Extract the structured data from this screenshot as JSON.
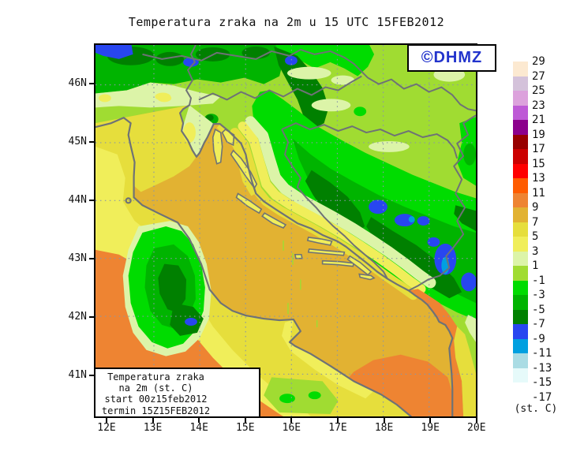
{
  "title": "Temperatura zraka na 2m u 15 UTC 15FEB2012",
  "logo": {
    "text": "©DHMZ",
    "color": "#2233CC"
  },
  "legend_box": {
    "lines": [
      "Temperatura zraka",
      "na 2m (st. C)",
      "start 00z15feb2012",
      "termin 15Z15FEB2012"
    ]
  },
  "axes": {
    "x_ticks": [
      "12E",
      "13E",
      "14E",
      "15E",
      "16E",
      "17E",
      "18E",
      "19E",
      "20E"
    ],
    "y_ticks": [
      "46N",
      "45N",
      "44N",
      "43N",
      "42N",
      "41N"
    ]
  },
  "colorbar": {
    "caption": "(st. C)",
    "boundary_labels": [
      "29",
      "27",
      "25",
      "23",
      "21",
      "19",
      "17",
      "15",
      "13",
      "11",
      "9",
      "7",
      "5",
      "3",
      "1",
      "-1",
      "-3",
      "-5",
      "-7",
      "-9",
      "-11",
      "-13",
      "-15",
      "-17"
    ],
    "box_colors": [
      "#FCE9D1",
      "#D4C2DA",
      "#DCA2DC",
      "#BE5AD6",
      "#8C008C",
      "#980000",
      "#CC0000",
      "#FF0000",
      "#FF5C00",
      "#EE8432",
      "#E2B232",
      "#E6DE3C",
      "#F0EE5A",
      "#DCF4A8",
      "#A0DC32",
      "#00DC00",
      "#00B400",
      "#008000",
      "#2846F0",
      "#00A0E0",
      "#AADCE4",
      "#E6FAFA",
      "#FFFFFF"
    ]
  },
  "map": {
    "units": "st. C (degrees Celsius)",
    "region": "Croatia / Adriatic (12E-20E, 41N-46N)",
    "palette": {
      "sea_gold": "#E2B232",
      "yellow": "#E6DE3C",
      "light_yellow": "#F0EE5A",
      "pale_green": "#DCF4A8",
      "yellow_green": "#A0DC32",
      "bright_green": "#00DC00",
      "green": "#00B400",
      "dark_green": "#008000",
      "cold_blue": "#2846F0",
      "cold_cyan": "#00A0E0",
      "warm_orange": "#EE8432",
      "coastline_grey": "#6E7276",
      "grid_grey": "#8A96A6"
    }
  }
}
